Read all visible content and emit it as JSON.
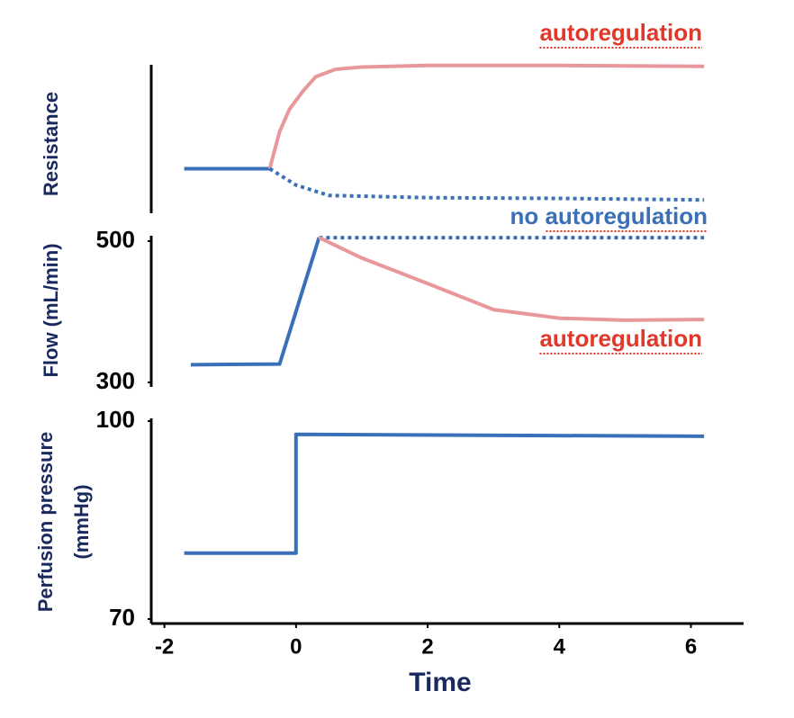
{
  "chart_data": [
    {
      "type": "line",
      "ylabel": [
        "Resistance"
      ],
      "xlim": [
        -2.2,
        6.8
      ],
      "ylim": [
        0,
        100
      ],
      "series": [
        {
          "color": "#3a70b8",
          "x": [
            -1.7,
            -0.4
          ],
          "values": [
            30,
            30
          ]
        },
        {
          "name": "autoregulation",
          "color": "#e8989a",
          "label_color": "#e0392b",
          "x": [
            -0.4,
            -0.25,
            -0.1,
            0.1,
            0.3,
            0.6,
            1,
            2,
            4,
            6.2
          ],
          "values": [
            30,
            55,
            70,
            82,
            92,
            97,
            98.5,
            99.5,
            99.5,
            99
          ]
        },
        {
          "color": "#3a70b8",
          "dotted": true,
          "x": [
            -0.4,
            0,
            0.5,
            2,
            4,
            6.2
          ],
          "values": [
            30,
            19,
            12,
            10.5,
            10,
            9
          ]
        }
      ]
    },
    {
      "type": "line",
      "ylabel": [
        "Flow (mL/min)"
      ],
      "xlim": [
        -2.2,
        6.8
      ],
      "ylim": [
        300,
        500
      ],
      "yticks": [
        300,
        500
      ],
      "series": [
        {
          "color": "#3a70b8",
          "x": [
            -1.6,
            -0.25,
            0.35
          ],
          "values": [
            325,
            326,
            505
          ]
        },
        {
          "name": "no autoregulation",
          "color": "#3a70b8",
          "label_color": "#3a70b8",
          "dotted": true,
          "x": [
            0.35,
            6.2
          ],
          "values": [
            505,
            505
          ]
        },
        {
          "name": "autoregulation",
          "color": "#e8989a",
          "label_color": "#e0392b",
          "x": [
            0.35,
            1,
            2,
            3,
            4,
            5,
            6.2
          ],
          "values": [
            505,
            476,
            440,
            403,
            391,
            388,
            389
          ]
        }
      ]
    },
    {
      "type": "line",
      "ylabel": [
        "Perfusion pressure",
        "(mmHg)"
      ],
      "xlabel": "Time",
      "xlim": [
        -2.2,
        6.8
      ],
      "ylim": [
        70,
        100
      ],
      "yticks": [
        70,
        100
      ],
      "xticks": [
        -2,
        0,
        2,
        4,
        6
      ],
      "series": [
        {
          "color": "#3a70b8",
          "x": [
            -1.7,
            0,
            0,
            6.2
          ],
          "values": [
            80,
            80,
            98,
            97.7
          ]
        }
      ]
    }
  ]
}
